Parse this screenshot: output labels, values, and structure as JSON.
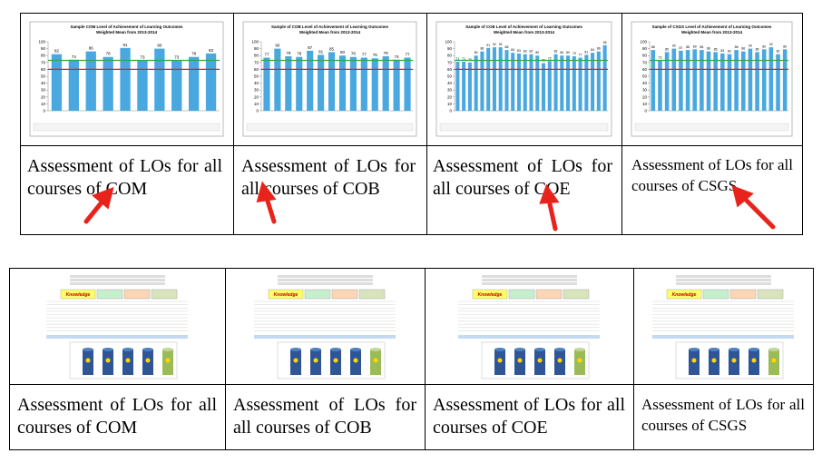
{
  "top_table": {
    "cells": [
      {
        "chart": {
          "type": "bar",
          "title": "Sample COM Level of Achievement of Learning Outcomes",
          "subtitle": "Weighted Mean from 2013-2014",
          "values": [
            82,
            74,
            86,
            78,
            91,
            73,
            90,
            73,
            78,
            83
          ],
          "color": "#4aa8e0",
          "ylim": [
            0,
            100
          ],
          "yticks": [
            0,
            10,
            20,
            30,
            40,
            50,
            60,
            70,
            80,
            90,
            100
          ],
          "lines": [
            {
              "value": 73,
              "color": "#2ea84a"
            },
            {
              "value": 60,
              "color": "#e02020"
            }
          ]
        },
        "caption": "Assessment of LOs for all courses of COM"
      },
      {
        "chart": {
          "type": "bar",
          "title": "Sample of COB Level of Achievement of Learning Outcomes",
          "subtitle": "Weighted Mean from 2013-2014",
          "values": [
            77,
            90,
            79,
            78,
            87,
            81,
            85,
            80,
            78,
            77,
            76,
            79,
            74,
            77
          ],
          "color": "#4aa8e0",
          "ylim": [
            0,
            100
          ],
          "yticks": [
            0,
            10,
            20,
            30,
            40,
            50,
            60,
            70,
            80,
            90,
            100
          ],
          "lines": [
            {
              "value": 73,
              "color": "#2ea84a"
            },
            {
              "value": 60,
              "color": "#e02020"
            }
          ]
        },
        "caption": "Assessment of LOs for all courses of COB"
      },
      {
        "chart": {
          "type": "bar",
          "title": "Sample of COE Level of Achievement of Learning Outcomes",
          "subtitle": "Weighted Mean from 2013-2014",
          "values": [
            71,
            71,
            70,
            80,
            86,
            91,
            92,
            92,
            88,
            84,
            83,
            82,
            82,
            80,
            69,
            72,
            82,
            80,
            80,
            79,
            77,
            81,
            84,
            86,
            95
          ],
          "color": "#4aa8e0",
          "ylim": [
            0,
            100
          ],
          "yticks": [
            0,
            10,
            20,
            30,
            40,
            50,
            60,
            70,
            80,
            90,
            100
          ],
          "lines": [
            {
              "value": 73,
              "color": "#2ea84a"
            },
            {
              "value": 60,
              "color": "#e02020"
            }
          ]
        },
        "caption": "Assessment of LOs for all courses of COE"
      },
      {
        "chart": {
          "type": "bar",
          "title": "Sample of CSGS Level of Achievement of Learning Outcomes",
          "subtitle": "Weighted Mean from 2013-2014",
          "values": [
            88,
            73,
            85,
            90,
            87,
            88,
            89,
            88,
            86,
            85,
            83,
            82,
            88,
            86,
            90,
            85,
            89,
            92,
            82,
            89
          ],
          "color": "#4aa8e0",
          "ylim": [
            0,
            100
          ],
          "yticks": [
            0,
            10,
            20,
            30,
            40,
            50,
            60,
            70,
            80,
            90,
            100
          ],
          "lines": [
            {
              "value": 73,
              "color": "#2ea84a"
            },
            {
              "value": 60,
              "color": "#e02020"
            }
          ]
        },
        "caption": "Assessment of LOs for all courses of CSGS"
      }
    ]
  },
  "bottom_table": {
    "cells": [
      {
        "sheet_header": "Knowledge",
        "caption": "Assessment of LOs for all courses of COM"
      },
      {
        "sheet_header": "Knowledge",
        "caption": "Assessment of LOs for all courses of COB"
      },
      {
        "sheet_header": "Knowledge",
        "caption": "Assessment of LOs for all courses of COE"
      },
      {
        "sheet_header": "Knowledge",
        "caption": "Assessment of LOs for all courses of CSGS"
      }
    ]
  }
}
